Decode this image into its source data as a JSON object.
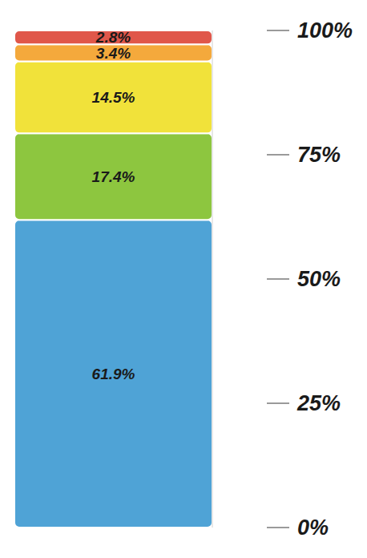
{
  "chart_data": {
    "type": "bar",
    "stacked": true,
    "data_labels": true,
    "tick_labels": "y",
    "grid": false,
    "ylim": [
      0,
      100
    ],
    "yticks": [
      {
        "value": 0,
        "label": "0%"
      },
      {
        "value": 25,
        "label": "25%"
      },
      {
        "value": 50,
        "label": "50%"
      },
      {
        "value": 75,
        "label": "75%"
      },
      {
        "value": 100,
        "label": "100%"
      }
    ],
    "series": [
      {
        "color": "#4fa3d6",
        "values": [
          61.9
        ],
        "value_labels": [
          "61.9%"
        ]
      },
      {
        "color": "#8dc63f",
        "values": [
          17.4
        ],
        "value_labels": [
          "17.4%"
        ]
      },
      {
        "color": "#f1e23a",
        "values": [
          14.5
        ],
        "value_labels": [
          "14.5%"
        ]
      },
      {
        "color": "#f4a93c",
        "values": [
          3.4
        ],
        "value_labels": [
          "3.4%"
        ]
      },
      {
        "color": "#e0574a",
        "values": [
          2.8
        ],
        "value_labels": [
          "2.8%"
        ]
      }
    ]
  }
}
